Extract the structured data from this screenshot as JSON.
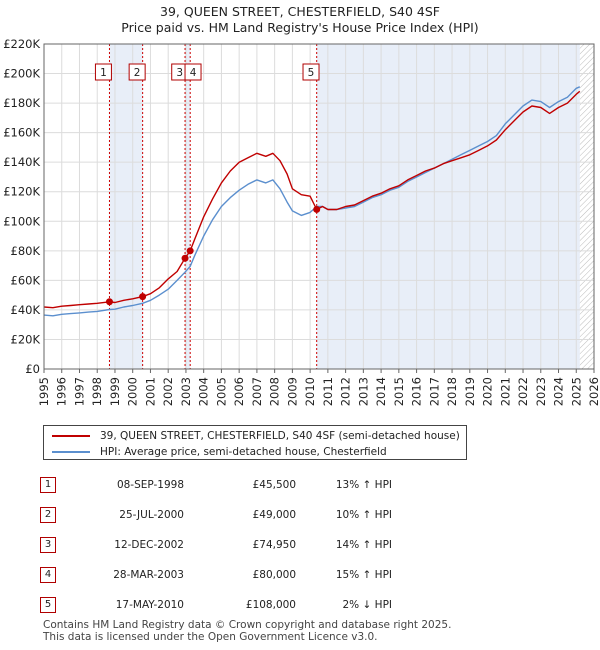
{
  "title_line1": "39, QUEEN STREET, CHESTERFIELD, S40 4SF",
  "title_line2": "Price paid vs. HM Land Registry's House Price Index (HPI)",
  "legend": {
    "property_label": "39, QUEEN STREET, CHESTERFIELD, S40 4SF (semi-detached house)",
    "hpi_label": "HPI: Average price, semi-detached house, Chesterfield"
  },
  "colors": {
    "property_line": "#c00000",
    "hpi_line": "#5b8fce",
    "shade": "#e8eef8",
    "marker": "#c00000",
    "dashed": "#cc0000"
  },
  "sales": [
    {
      "num": "1",
      "date": "08-SEP-1998",
      "price": "£45,500",
      "pct": "13%",
      "dir": "↑",
      "ref": "HPI"
    },
    {
      "num": "2",
      "date": "25-JUL-2000",
      "price": "£49,000",
      "pct": "10%",
      "dir": "↑",
      "ref": "HPI"
    },
    {
      "num": "3",
      "date": "12-DEC-2002",
      "price": "£74,950",
      "pct": "14%",
      "dir": "↑",
      "ref": "HPI"
    },
    {
      "num": "4",
      "date": "28-MAR-2003",
      "price": "£80,000",
      "pct": "15%",
      "dir": "↑",
      "ref": "HPI"
    },
    {
      "num": "5",
      "date": "17-MAY-2010",
      "price": "£108,000",
      "pct": "2%",
      "dir": "↓",
      "ref": "HPI"
    }
  ],
  "footer_line1": "Contains HM Land Registry data © Crown copyright and database right 2025.",
  "footer_line2": "This data is licensed under the Open Government Licence v3.0.",
  "chart_data": {
    "type": "line",
    "title": "39, QUEEN STREET, CHESTERFIELD, S40 4SF — Price paid vs. HM Land Registry's House Price Index (HPI)",
    "xlabel": "",
    "ylabel": "",
    "xlim": [
      1995,
      2026
    ],
    "ylim": [
      0,
      220000
    ],
    "x_ticks": [
      1995,
      1996,
      1997,
      1998,
      1999,
      2000,
      2001,
      2002,
      2003,
      2004,
      2005,
      2006,
      2007,
      2008,
      2009,
      2010,
      2011,
      2012,
      2013,
      2014,
      2015,
      2016,
      2017,
      2018,
      2019,
      2020,
      2021,
      2022,
      2023,
      2024,
      2025,
      2026
    ],
    "y_ticks": [
      0,
      20000,
      40000,
      60000,
      80000,
      100000,
      120000,
      140000,
      160000,
      180000,
      200000,
      220000
    ],
    "y_tick_labels": [
      "£0",
      "£20K",
      "£40K",
      "£60K",
      "£80K",
      "£100K",
      "£120K",
      "£140K",
      "£160K",
      "£180K",
      "£200K",
      "£220K"
    ],
    "grid": true,
    "shaded_ranges": [
      [
        1998.69,
        2000.56
      ],
      [
        2002.95,
        2003.24
      ],
      [
        2010.37,
        2025.2
      ]
    ],
    "hatched_range": [
      2025.2,
      2026
    ],
    "sale_points": [
      {
        "label": "1",
        "x": 1998.69,
        "y": 45500
      },
      {
        "label": "2",
        "x": 2000.56,
        "y": 49000
      },
      {
        "label": "3",
        "x": 2002.95,
        "y": 74950
      },
      {
        "label": "4",
        "x": 2003.24,
        "y": 80000
      },
      {
        "label": "5",
        "x": 2010.37,
        "y": 108000
      }
    ],
    "series": [
      {
        "name": "39, QUEEN STREET, CHESTERFIELD, S40 4SF (semi-detached house)",
        "x": [
          1995.0,
          1995.5,
          1996.0,
          1996.5,
          1997.0,
          1997.5,
          1998.0,
          1998.69,
          1999.0,
          1999.5,
          2000.0,
          2000.56,
          2001.0,
          2001.5,
          2002.0,
          2002.5,
          2002.95,
          2003.24,
          2003.5,
          2004.0,
          2004.5,
          2005.0,
          2005.5,
          2006.0,
          2006.5,
          2007.0,
          2007.5,
          2007.9,
          2008.3,
          2008.7,
          2009.0,
          2009.5,
          2010.0,
          2010.37,
          2010.7,
          2011.0,
          2011.5,
          2012.0,
          2012.5,
          2013.0,
          2013.5,
          2014.0,
          2014.5,
          2015.0,
          2015.5,
          2016.0,
          2016.5,
          2017.0,
          2017.5,
          2018.0,
          2018.5,
          2019.0,
          2019.5,
          2020.0,
          2020.5,
          2021.0,
          2021.5,
          2022.0,
          2022.5,
          2023.0,
          2023.5,
          2024.0,
          2024.5,
          2025.0,
          2025.2
        ],
        "y": [
          42000,
          41500,
          42500,
          43000,
          43500,
          44000,
          44500,
          45500,
          45000,
          46500,
          47500,
          49000,
          51000,
          55000,
          61000,
          66000,
          74950,
          80000,
          88000,
          103000,
          115000,
          126000,
          134000,
          140000,
          143000,
          146000,
          144000,
          146000,
          141000,
          132000,
          122000,
          118000,
          117000,
          108000,
          110000,
          108000,
          108000,
          110000,
          111000,
          114000,
          117000,
          119000,
          122000,
          124000,
          128000,
          131000,
          134000,
          136000,
          139000,
          141000,
          143000,
          145000,
          148000,
          151000,
          155000,
          162000,
          168000,
          174000,
          178000,
          177000,
          173000,
          177000,
          180000,
          186000,
          188000
        ]
      },
      {
        "name": "HPI: Average price, semi-detached house, Chesterfield",
        "x": [
          1995.0,
          1995.5,
          1996.0,
          1996.5,
          1997.0,
          1997.5,
          1998.0,
          1998.69,
          1999.0,
          1999.5,
          2000.0,
          2000.56,
          2001.0,
          2001.5,
          2002.0,
          2002.5,
          2002.95,
          2003.24,
          2003.5,
          2004.0,
          2004.5,
          2005.0,
          2005.5,
          2006.0,
          2006.5,
          2007.0,
          2007.5,
          2007.9,
          2008.3,
          2008.7,
          2009.0,
          2009.5,
          2010.0,
          2010.37,
          2010.7,
          2011.0,
          2011.5,
          2012.0,
          2012.5,
          2013.0,
          2013.5,
          2014.0,
          2014.5,
          2015.0,
          2015.5,
          2016.0,
          2016.5,
          2017.0,
          2017.5,
          2018.0,
          2018.5,
          2019.0,
          2019.5,
          2020.0,
          2020.5,
          2021.0,
          2021.5,
          2022.0,
          2022.5,
          2023.0,
          2023.5,
          2024.0,
          2024.5,
          2025.0,
          2025.2
        ],
        "y": [
          36500,
          36000,
          37000,
          37500,
          38000,
          38500,
          39000,
          40300,
          40500,
          42000,
          43000,
          44500,
          46500,
          50000,
          54000,
          60000,
          65500,
          69500,
          77000,
          90000,
          101000,
          110000,
          116000,
          121000,
          125000,
          128000,
          126000,
          128000,
          122000,
          113000,
          107000,
          104000,
          106000,
          110000,
          110000,
          108000,
          108000,
          109000,
          110000,
          113000,
          116000,
          118000,
          121000,
          123000,
          127000,
          130000,
          133000,
          136000,
          139000,
          142000,
          145000,
          148000,
          151000,
          154000,
          158000,
          166000,
          172000,
          178000,
          182000,
          181000,
          177000,
          181000,
          184000,
          190000,
          191000
        ]
      }
    ]
  }
}
